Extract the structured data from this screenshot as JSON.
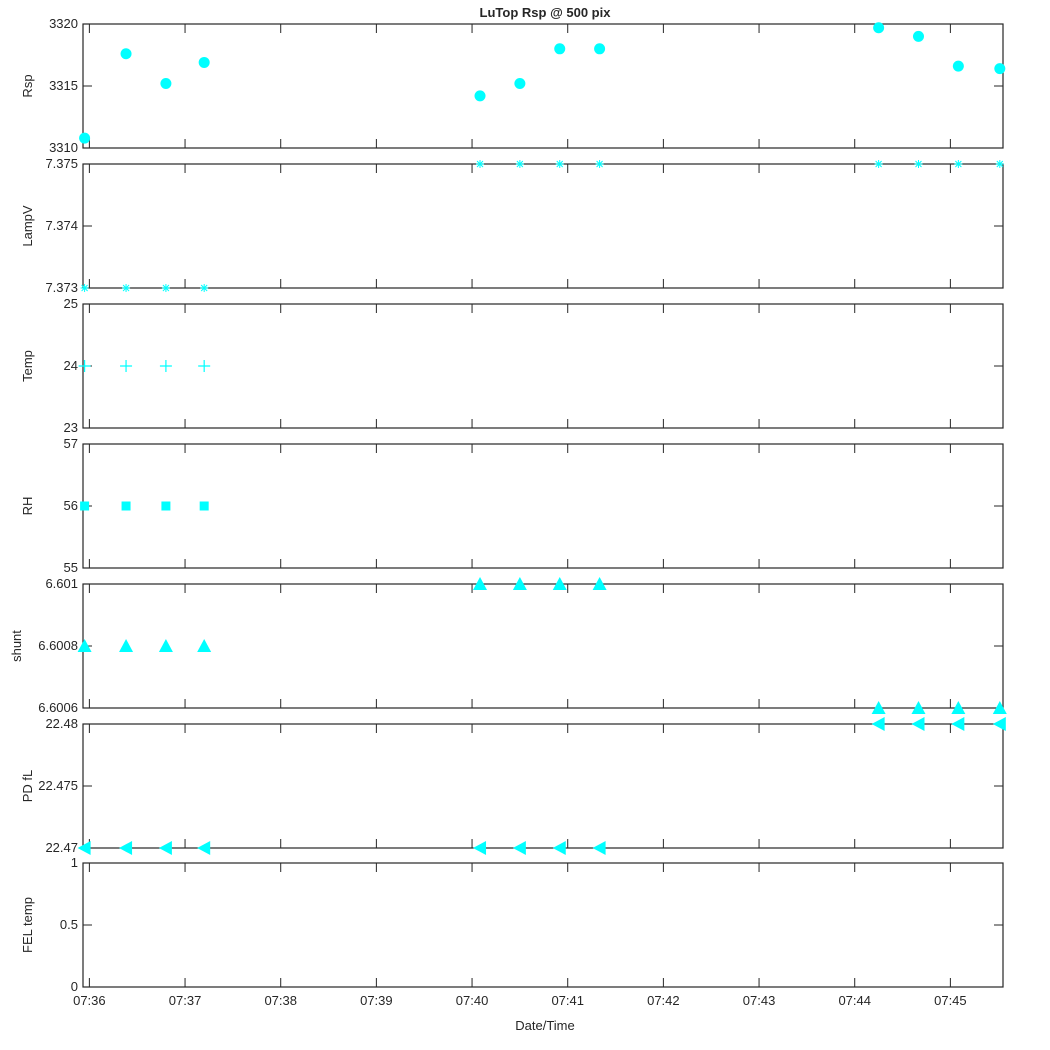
{
  "chart_data": {
    "type": "scatter",
    "title": "LuTop Rsp @ 500 pix",
    "xlabel": "Date/Time",
    "x_tick_labels": [
      "07:36",
      "07:37",
      "07:38",
      "07:39",
      "07:40",
      "07:41",
      "07:42",
      "07:43",
      "07:44",
      "07:45"
    ],
    "xlim": [
      "07:35:56",
      "07:45:33"
    ],
    "marker_color": "#00FFFF",
    "axes_color": "#262626",
    "panels": [
      {
        "ylabel": "Rsp",
        "ylim": [
          3310,
          3320
        ],
        "y_tick_labels": [
          "3310",
          "3315",
          "3320"
        ],
        "marker": "circle",
        "x": [
          "07:35:57",
          "07:36:23",
          "07:36:48",
          "07:37:12",
          "07:40:05",
          "07:40:30",
          "07:40:55",
          "07:41:20",
          "07:44:15",
          "07:44:40",
          "07:45:05",
          "07:45:31"
        ],
        "y": [
          3310.8,
          3317.6,
          3315.2,
          3316.9,
          3314.2,
          3315.2,
          3318.0,
          3318.0,
          3319.7,
          3319.0,
          3316.6,
          3316.4
        ]
      },
      {
        "ylabel": "LampV",
        "ylim": [
          7.373,
          7.375
        ],
        "y_tick_labels": [
          "7.373",
          "7.374",
          "7.375"
        ],
        "marker": "asterisk",
        "x": [
          "07:35:57",
          "07:36:23",
          "07:36:48",
          "07:37:12",
          "07:40:05",
          "07:40:30",
          "07:40:55",
          "07:41:20",
          "07:44:15",
          "07:44:40",
          "07:45:05",
          "07:45:31"
        ],
        "y": [
          7.373,
          7.373,
          7.373,
          7.373,
          7.375,
          7.375,
          7.375,
          7.375,
          7.375,
          7.375,
          7.375,
          7.375
        ]
      },
      {
        "ylabel": "Temp",
        "ylim": [
          23,
          25
        ],
        "y_tick_labels": [
          "23",
          "24",
          "25"
        ],
        "marker": "plus",
        "x": [
          "07:35:57",
          "07:36:23",
          "07:36:48",
          "07:37:12"
        ],
        "y": [
          24,
          24,
          24,
          24
        ]
      },
      {
        "ylabel": "RH",
        "ylim": [
          55,
          57
        ],
        "y_tick_labels": [
          "55",
          "56",
          "57"
        ],
        "marker": "square",
        "x": [
          "07:35:57",
          "07:36:23",
          "07:36:48",
          "07:37:12"
        ],
        "y": [
          56,
          56,
          56,
          56
        ]
      },
      {
        "ylabel": "shunt",
        "ylim": [
          6.6006,
          6.601
        ],
        "y_tick_labels": [
          "6.6006",
          "6.6008",
          "6.601"
        ],
        "marker": "triangle-up",
        "x": [
          "07:35:57",
          "07:36:23",
          "07:36:48",
          "07:37:12",
          "07:40:05",
          "07:40:30",
          "07:40:55",
          "07:41:20",
          "07:44:15",
          "07:44:40",
          "07:45:05",
          "07:45:31"
        ],
        "y": [
          6.6008,
          6.6008,
          6.6008,
          6.6008,
          6.601,
          6.601,
          6.601,
          6.601,
          6.6006,
          6.6006,
          6.6006,
          6.6006
        ]
      },
      {
        "ylabel": "PD fL",
        "ylim": [
          22.47,
          22.48
        ],
        "y_tick_labels": [
          "22.47",
          "22.475",
          "22.48"
        ],
        "marker": "triangle-left",
        "x": [
          "07:35:57",
          "07:36:23",
          "07:36:48",
          "07:37:12",
          "07:40:05",
          "07:40:30",
          "07:40:55",
          "07:41:20",
          "07:44:15",
          "07:44:40",
          "07:45:05",
          "07:45:31"
        ],
        "y": [
          22.47,
          22.47,
          22.47,
          22.47,
          22.47,
          22.47,
          22.47,
          22.47,
          22.48,
          22.48,
          22.48,
          22.48
        ]
      },
      {
        "ylabel": "FEL temp",
        "ylim": [
          0,
          1
        ],
        "y_tick_labels": [
          "0",
          "0.5",
          "1"
        ],
        "marker": "none",
        "x": [],
        "y": []
      }
    ]
  }
}
